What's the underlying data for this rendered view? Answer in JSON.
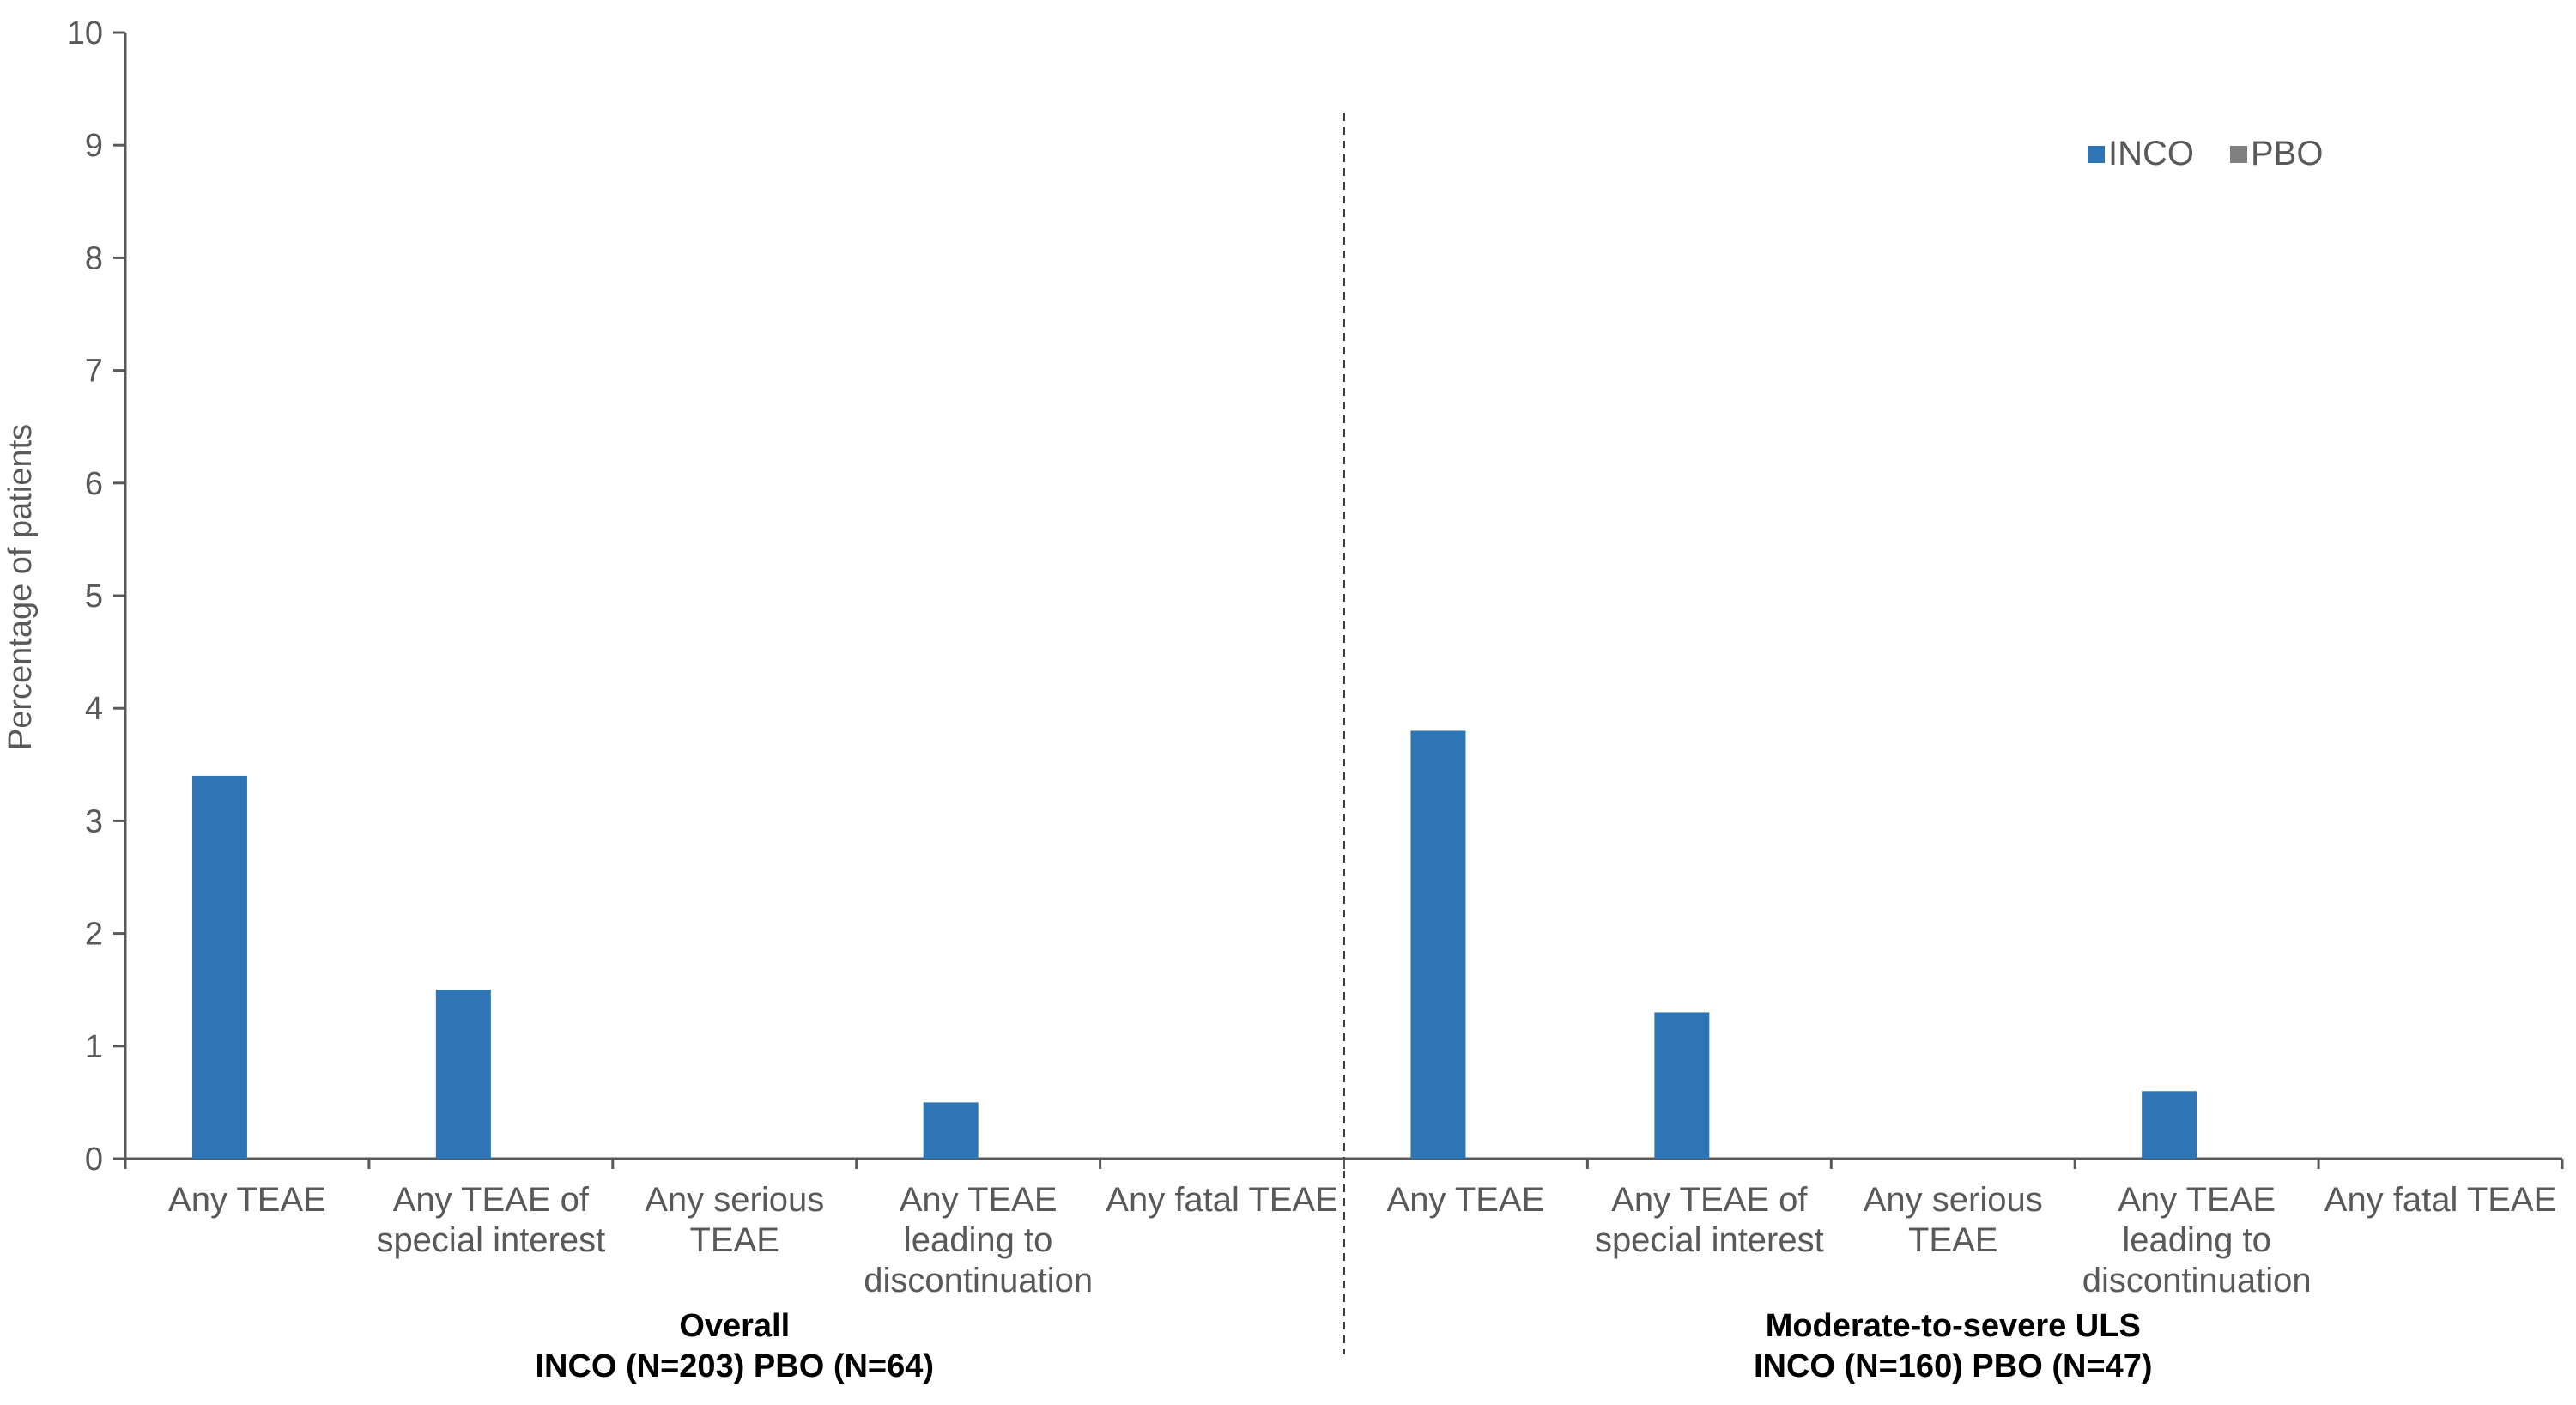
{
  "chart_data": {
    "type": "bar",
    "ylabel": "Percentage of patients",
    "ylim": [
      0,
      10
    ],
    "yticks": [
      0,
      1,
      2,
      3,
      4,
      5,
      6,
      7,
      8,
      9,
      10
    ],
    "grid": false,
    "legend_position": "top-right",
    "categories": [
      [
        "Any TEAE"
      ],
      [
        "Any TEAE of",
        "special interest"
      ],
      [
        "Any serious",
        "TEAE"
      ],
      [
        "Any TEAE",
        "leading to",
        "discontinuation"
      ],
      [
        "Any fatal TEAE"
      ],
      [
        "Any TEAE"
      ],
      [
        "Any TEAE of",
        "special interest"
      ],
      [
        "Any serious",
        "TEAE"
      ],
      [
        "Any TEAE",
        "leading to",
        "discontinuation"
      ],
      [
        "Any fatal TEAE"
      ]
    ],
    "groups": [
      {
        "lines": [
          "Overall",
          "INCO (N=203) PBO (N=64)"
        ],
        "category_span": [
          0,
          4
        ]
      },
      {
        "lines": [
          "Moderate-to-severe ULS",
          "INCO (N=160) PBO (N=47)"
        ],
        "category_span": [
          5,
          9
        ]
      }
    ],
    "series": [
      {
        "name": "INCO",
        "color": "#2E75B6",
        "values": [
          3.4,
          1.5,
          0,
          0.5,
          0,
          3.8,
          1.3,
          0,
          0.6,
          0
        ]
      },
      {
        "name": "PBO",
        "color": "#808080",
        "values": [
          0,
          0,
          0,
          0,
          0,
          0,
          0,
          0,
          0,
          0
        ]
      }
    ]
  }
}
